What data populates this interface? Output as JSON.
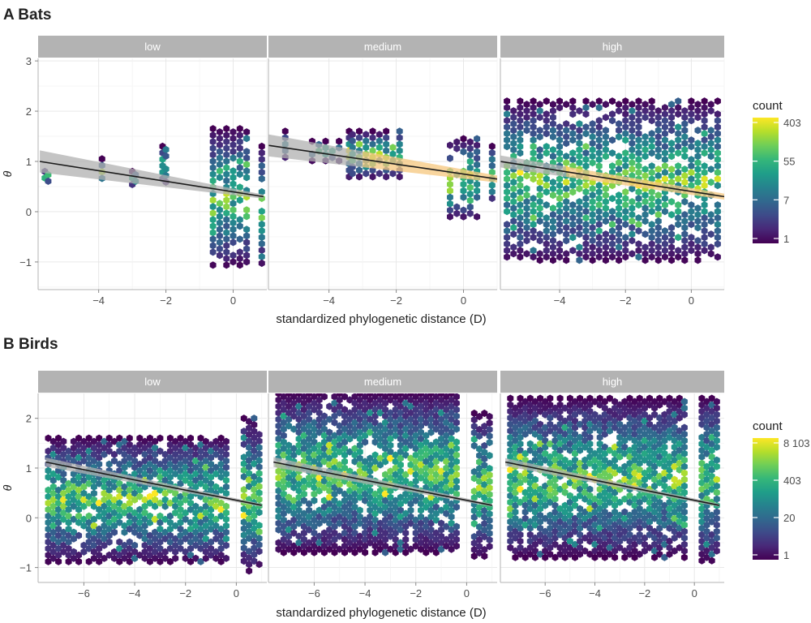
{
  "figure": {
    "chart_data": [
      {
        "panel_label": "A Bats",
        "type": "heatmap",
        "subtype": "hexbin scatter with regression line and confidence band, faceted",
        "xlabel": "standardized phylogenetic distance (D)",
        "ylabel": "θ",
        "xlim": [
          -5.8,
          1.0
        ],
        "ylim": [
          -1.55,
          3.05
        ],
        "x_ticks": [
          -4,
          -2,
          0
        ],
        "y_ticks": [
          -1,
          0,
          1,
          2,
          3
        ],
        "grid": true,
        "facets": [
          {
            "name": "low",
            "regression": {
              "x": [
                -5.75,
                0.9
              ],
              "y": [
                1.0,
                0.3
              ]
            },
            "band_half_width": {
              "left": 0.22,
              "right": 0.04
            },
            "band_segments": [
              {
                "x_start": -5.75,
                "x_end": 0.9,
                "color": "#b0b0b0"
              }
            ],
            "clusters": [
              {
                "x": [
                  -5.6,
                  -5.5
                ],
                "y_range": [
                  0.6,
                  0.8
                ]
              },
              {
                "x": [
                  -3.9
                ],
                "y_range": [
                  0.55,
                  1.05
                ]
              },
              {
                "x": [
                  -3.0,
                  -2.9
                ],
                "y_range": [
                  0.5,
                  0.8
                ]
              },
              {
                "x": [
                  -2.1,
                  -2.0
                ],
                "y_range": [
                  0.55,
                  1.3
                ]
              },
              {
                "x": [
                  -0.6,
                  -0.4,
                  -0.2,
                  0.0,
                  0.2,
                  0.4
                ],
                "y_range": [
                  -1.1,
                  1.65
                ]
              },
              {
                "x": [
                  0.85
                ],
                "y_range": [
                  -1.1,
                  1.3
                ]
              }
            ]
          },
          {
            "name": "medium",
            "regression": {
              "x": [
                -5.8,
                1.0
              ],
              "y": [
                1.32,
                0.65
              ]
            },
            "band_half_width": {
              "left": 0.22,
              "right": 0.07
            },
            "band_segments": [
              {
                "x_start": -5.8,
                "x_end": -3.0,
                "color": "#b0b0b0"
              },
              {
                "x_start": -3.0,
                "x_end": 1.0,
                "color": "#f5c77e"
              }
            ],
            "clusters": [
              {
                "x": [
                  -5.3
                ],
                "y_range": [
                  1.05,
                  1.6
                ]
              },
              {
                "x": [
                  -4.5,
                  -4.3,
                  -4.1,
                  -3.9,
                  -3.7
                ],
                "y_range": [
                  1.0,
                  1.4
                ]
              },
              {
                "x": [
                  -3.4,
                  -3.3,
                  -3.1,
                  -2.9,
                  -2.7,
                  -2.5,
                  -2.3,
                  -2.1,
                  -1.9
                ],
                "y_range": [
                  0.65,
                  1.6
                ]
              },
              {
                "x": [
                  -0.4,
                  -0.2,
                  0.0,
                  0.2,
                  0.4
                ],
                "y_range": [
                  -0.15,
                  1.45
                ]
              },
              {
                "x": [
                  0.85
                ],
                "y_range": [
                  0.15,
                  1.3
                ]
              }
            ]
          },
          {
            "name": "high",
            "regression": {
              "x": [
                -5.8,
                1.0
              ],
              "y": [
                1.0,
                0.3
              ]
            },
            "band_half_width": {
              "left": 0.12,
              "right": 0.06
            },
            "band_segments": [
              {
                "x_start": -5.8,
                "x_end": -3.8,
                "color": "#b0b0b0"
              },
              {
                "x_start": -3.8,
                "x_end": 1.0,
                "color": "#f5c77e"
              }
            ],
            "clusters": [
              {
                "x": [
                  -5.6,
                  -5.4,
                  -5.2,
                  -5.0,
                  -4.8,
                  -4.6,
                  -4.4,
                  -4.2,
                  -4.0,
                  -3.8,
                  -3.6,
                  -3.4,
                  -3.2,
                  -3.0,
                  -2.8,
                  -2.6,
                  -2.4,
                  -2.2,
                  -2.0,
                  -1.8,
                  -1.6,
                  -1.4,
                  -1.2,
                  -1.0,
                  -0.8,
                  -0.6,
                  -0.4,
                  -0.2,
                  0.0,
                  0.2,
                  0.4,
                  0.6,
                  0.8
                ],
                "y_range": [
                  -1.0,
                  2.2
                ]
              }
            ]
          }
        ],
        "legend": {
          "title": "count",
          "labels": [
            "1",
            "7",
            "55",
            "403"
          ],
          "position": "right"
        }
      },
      {
        "panel_label": "B Birds",
        "type": "heatmap",
        "subtype": "hexbin scatter with regression line and confidence band, faceted",
        "xlabel": "standardized phylogenetic distance (D)",
        "ylabel": "θ",
        "xlim": [
          -7.8,
          1.2
        ],
        "ylim": [
          -1.3,
          2.5
        ],
        "x_ticks": [
          -6,
          -4,
          -2,
          0
        ],
        "y_ticks": [
          -1,
          0,
          1,
          2
        ],
        "grid": true,
        "facets": [
          {
            "name": "low",
            "regression": {
              "x": [
                -7.5,
                1.0
              ],
              "y": [
                1.12,
                0.25
              ]
            },
            "band_half_width": {
              "left": 0.09,
              "right": 0.03
            },
            "band_segments": [
              {
                "x_start": -7.5,
                "x_end": 1.0,
                "color": "#b0b0b0"
              }
            ],
            "clusters": [
              {
                "x": [
                  -7.4,
                  -7.2,
                  -7.0,
                  -6.8,
                  -6.6,
                  -6.4,
                  -6.2,
                  -6.0,
                  -5.8,
                  -5.6,
                  -5.4,
                  -5.2,
                  -5.0,
                  -4.8,
                  -4.6,
                  -4.4,
                  -4.2,
                  -4.0,
                  -3.8,
                  -3.6,
                  -3.4,
                  -3.2,
                  -3.0,
                  -2.8,
                  -2.6,
                  -2.4,
                  -2.2,
                  -2.0,
                  -1.8,
                  -1.6,
                  -1.4,
                  -1.2,
                  -1.0,
                  -0.8,
                  -0.6,
                  -0.4
                ],
                "y_range": [
                  -0.9,
                  1.6
                ]
              },
              {
                "x": [
                  0.3,
                  0.5,
                  0.7,
                  0.9
                ],
                "y_range": [
                  -1.1,
                  2.0
                ]
              }
            ]
          },
          {
            "name": "medium",
            "regression": {
              "x": [
                -7.6,
                1.0
              ],
              "y": [
                1.12,
                0.25
              ]
            },
            "band_half_width": {
              "left": 0.1,
              "right": 0.03
            },
            "band_segments": [
              {
                "x_start": -7.6,
                "x_end": 1.0,
                "color": "#b0b0b0"
              }
            ],
            "clusters": [
              {
                "x": [
                  -7.4,
                  -7.2,
                  -7.0,
                  -6.8,
                  -6.6,
                  -6.4,
                  -6.2,
                  -6.0,
                  -5.8,
                  -5.6,
                  -5.4,
                  -5.2,
                  -5.0,
                  -4.8,
                  -4.6,
                  -4.4,
                  -4.2,
                  -4.0,
                  -3.8,
                  -3.6,
                  -3.4,
                  -3.2,
                  -3.0,
                  -2.8,
                  -2.6,
                  -2.4,
                  -2.2,
                  -2.0,
                  -1.8,
                  -1.6,
                  -1.4,
                  -1.2,
                  -1.0,
                  -0.8,
                  -0.6,
                  -0.4
                ],
                "y_range": [
                  -0.7,
                  2.5
                ]
              },
              {
                "x": [
                  0.3,
                  0.5,
                  0.7,
                  0.9
                ],
                "y_range": [
                  -0.8,
                  2.1
                ]
              }
            ]
          },
          {
            "name": "high",
            "regression": {
              "x": [
                -7.6,
                1.0
              ],
              "y": [
                1.12,
                0.25
              ]
            },
            "band_half_width": {
              "left": 0.08,
              "right": 0.03
            },
            "band_segments": [
              {
                "x_start": -7.6,
                "x_end": 1.0,
                "color": "#b0b0b0"
              }
            ],
            "clusters": [
              {
                "x": [
                  -7.4,
                  -7.2,
                  -7.0,
                  -6.8,
                  -6.6,
                  -6.4,
                  -6.2,
                  -6.0,
                  -5.8,
                  -5.6,
                  -5.4,
                  -5.2,
                  -5.0,
                  -4.8,
                  -4.6,
                  -4.4,
                  -4.2,
                  -4.0,
                  -3.8,
                  -3.6,
                  -3.4,
                  -3.2,
                  -3.0,
                  -2.8,
                  -2.6,
                  -2.4,
                  -2.2,
                  -2.0,
                  -1.8,
                  -1.6,
                  -1.4,
                  -1.2,
                  -1.0,
                  -0.8,
                  -0.6,
                  -0.4
                ],
                "y_range": [
                  -0.8,
                  2.4
                ]
              },
              {
                "x": [
                  0.3,
                  0.5,
                  0.7,
                  0.9
                ],
                "y_range": [
                  -0.9,
                  2.4
                ]
              }
            ]
          }
        ],
        "legend": {
          "title": "count",
          "labels": [
            "1",
            "20",
            "403",
            "8 103"
          ],
          "position": "right"
        }
      }
    ],
    "colors": {
      "strip_bg": "#b3b3b3",
      "strip_text": "#ffffff",
      "panel_border": "#b3b3b3",
      "grid_major": "#e6e6e6",
      "grid_minor": "#f2f2f2",
      "regression_line": "#1a1a1a",
      "viridis": [
        "#440154",
        "#482878",
        "#3e4a89",
        "#31688e",
        "#26828e",
        "#1f9e89",
        "#35b779",
        "#6ece58",
        "#b5de2b",
        "#fde725"
      ]
    }
  }
}
